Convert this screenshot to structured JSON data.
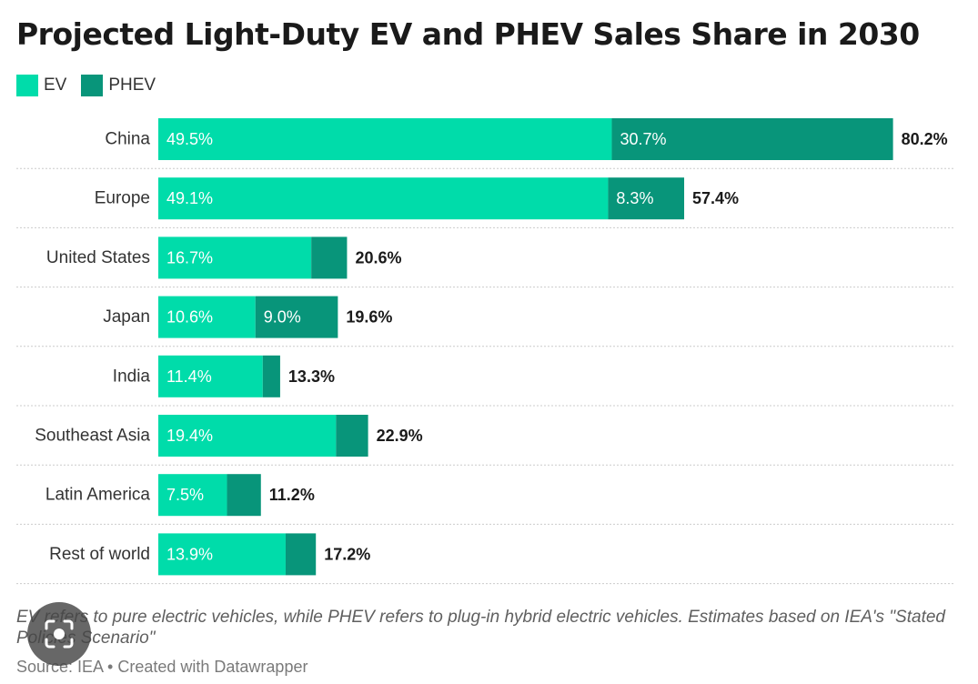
{
  "title": "Projected Light-Duty EV and PHEV Sales Share in 2030",
  "legend": {
    "ev_label": "EV",
    "phev_label": "PHEV"
  },
  "colors": {
    "ev": "#00DCAA",
    "phev": "#08957A",
    "grid": "#cccccc"
  },
  "chart_data": {
    "type": "bar",
    "orientation": "horizontal",
    "stacked": true,
    "title": "Projected Light-Duty EV and PHEV Sales Share in 2030",
    "xlabel": "",
    "ylabel": "",
    "xlim": [
      0,
      100
    ],
    "legend_position": "top-left",
    "categories": [
      "China",
      "Europe",
      "United States",
      "Japan",
      "India",
      "Southeast Asia",
      "Latin America",
      "Rest of world"
    ],
    "series": [
      {
        "name": "EV",
        "values": [
          49.5,
          49.1,
          16.7,
          10.6,
          11.4,
          19.4,
          7.5,
          13.9
        ]
      },
      {
        "name": "PHEV",
        "values": [
          30.7,
          8.3,
          3.9,
          9.0,
          1.9,
          3.5,
          3.7,
          3.3
        ]
      }
    ],
    "ev_labels": [
      "49.5%",
      "49.1%",
      "16.7%",
      "10.6%",
      "11.4%",
      "19.4%",
      "7.5%",
      "13.9%"
    ],
    "phev_labels": [
      "30.7%",
      "8.3%",
      "",
      "9.0%",
      "",
      "",
      "",
      ""
    ],
    "total_labels": [
      "80.2%",
      "57.4%",
      "20.6%",
      "19.6%",
      "13.3%",
      "22.9%",
      "11.2%",
      "17.2%"
    ]
  },
  "footnote": "EV refers to pure electric vehicles, while PHEV refers to plug-in hybrid electric vehicles. Estimates based on IEA's \"Stated Policies Scenario\"",
  "source": "Source: IEA • Created with Datawrapper",
  "overlay": {
    "icon": "lens-icon"
  }
}
